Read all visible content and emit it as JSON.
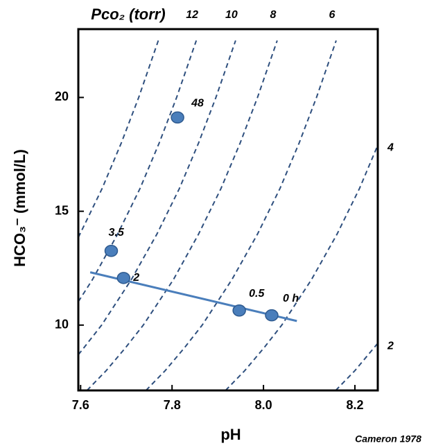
{
  "chart_data": {
    "type": "scatter",
    "title": "Pco₂ (torr)",
    "x_label": "pH",
    "y_label": "HCO₃⁻ (mmol/L)",
    "annotation": "Cameron 1978",
    "xlim": [
      7.595,
      8.25
    ],
    "ylim": [
      7.13,
      23.0
    ],
    "xticks": [
      7.6,
      7.8,
      {
        "value": 8.0,
        "label": "8.0"
      },
      8.2
    ],
    "yticks": [
      10,
      15,
      20
    ],
    "points": {
      "color": "#4a7ebb",
      "x": [
        7.667,
        7.694,
        7.812,
        7.947,
        8.018
      ],
      "values": [
        13.26,
        12.07,
        19.12,
        10.64,
        10.43
      ],
      "labels": [
        "3.5",
        "2",
        "48",
        "0.5",
        "0 h"
      ]
    },
    "fit": {
      "color": "#4a7ebb",
      "x": [
        7.621,
        8.073
      ],
      "values": [
        12.32,
        10.18
      ]
    },
    "isopleth_color": "#2e4f7e",
    "isopleths": [
      {
        "x": [
          7.595,
          7.647,
          7.689,
          7.727,
          7.77
        ],
        "values": [
          13.85,
          16,
          18,
          20,
          22.5
        ]
      },
      {
        "name": "12",
        "x": [
          7.595,
          7.626,
          7.681,
          7.73,
          7.772,
          7.81,
          7.853
        ],
        "values": [
          11.03,
          12,
          14,
          16,
          18,
          20,
          22.5
        ]
      },
      {
        "name": "10",
        "x": [
          7.595,
          7.607,
          7.646,
          7.711,
          7.767,
          7.816,
          7.858,
          7.896,
          7.939
        ],
        "values": [
          8.7,
          9,
          10,
          12,
          14,
          16,
          18,
          20,
          22.5
        ]
      },
      {
        "name": "8",
        "x": [
          7.614,
          7.656,
          7.698,
          7.737,
          7.803,
          7.858,
          7.907,
          7.949,
          7.987,
          8.03
        ],
        "values": [
          7.13,
          8,
          9,
          10,
          12,
          14,
          16,
          18,
          20,
          22.5
        ]
      },
      {
        "name": "6",
        "x": [
          7.743,
          7.785,
          7.827,
          7.866,
          7.931,
          7.987,
          8.036,
          8.078,
          8.116,
          8.159
        ],
        "values": [
          7.13,
          8,
          9,
          10,
          12,
          14,
          16,
          18,
          20,
          22.5
        ]
      },
      {
        "name": "4",
        "x": [
          7.917,
          7.959,
          8.001,
          8.04,
          8.105,
          8.161,
          8.21,
          8.25
        ],
        "values": [
          7.13,
          8,
          9,
          10,
          12,
          14,
          16,
          17.9
        ]
      },
      {
        "name": "2",
        "x": [
          8.158,
          8.2,
          8.25
        ],
        "values": [
          7.13,
          8,
          9.2
        ]
      }
    ]
  }
}
